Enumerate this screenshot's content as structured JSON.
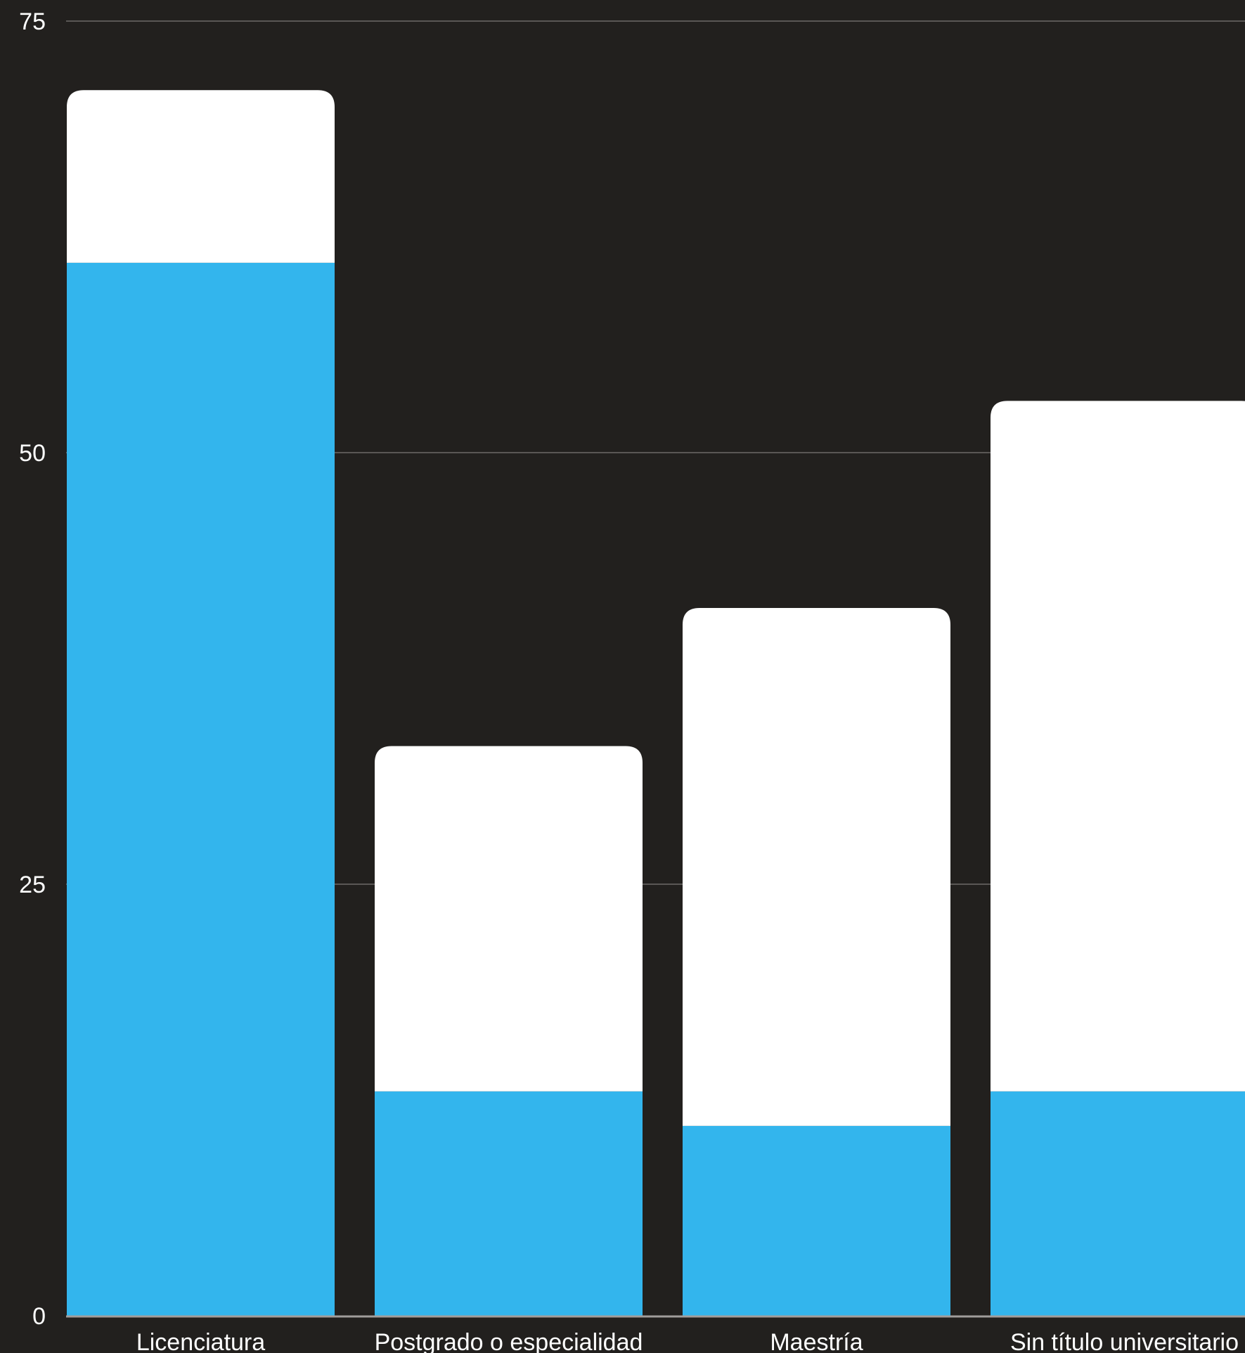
{
  "chart_data": {
    "type": "bar",
    "stacked": true,
    "categories": [
      "Licenciatura",
      "Postgrado o especialidad",
      "Maestría",
      "Sin título universitario"
    ],
    "series": [
      {
        "color": "#33b5ed",
        "values": [
          61,
          13,
          11,
          13
        ]
      },
      {
        "color": "#ffffff",
        "values": [
          10,
          20,
          30,
          40
        ]
      }
    ],
    "y_ticks": [
      0,
      25,
      50,
      75
    ],
    "ylim": [
      0,
      75
    ],
    "grid": true,
    "xlabel": "",
    "ylabel": "",
    "title": ""
  },
  "colors": {
    "background": "#22201e",
    "gridline": "#5a5755",
    "axis": "#a09d9b",
    "text": "#ffffff"
  }
}
